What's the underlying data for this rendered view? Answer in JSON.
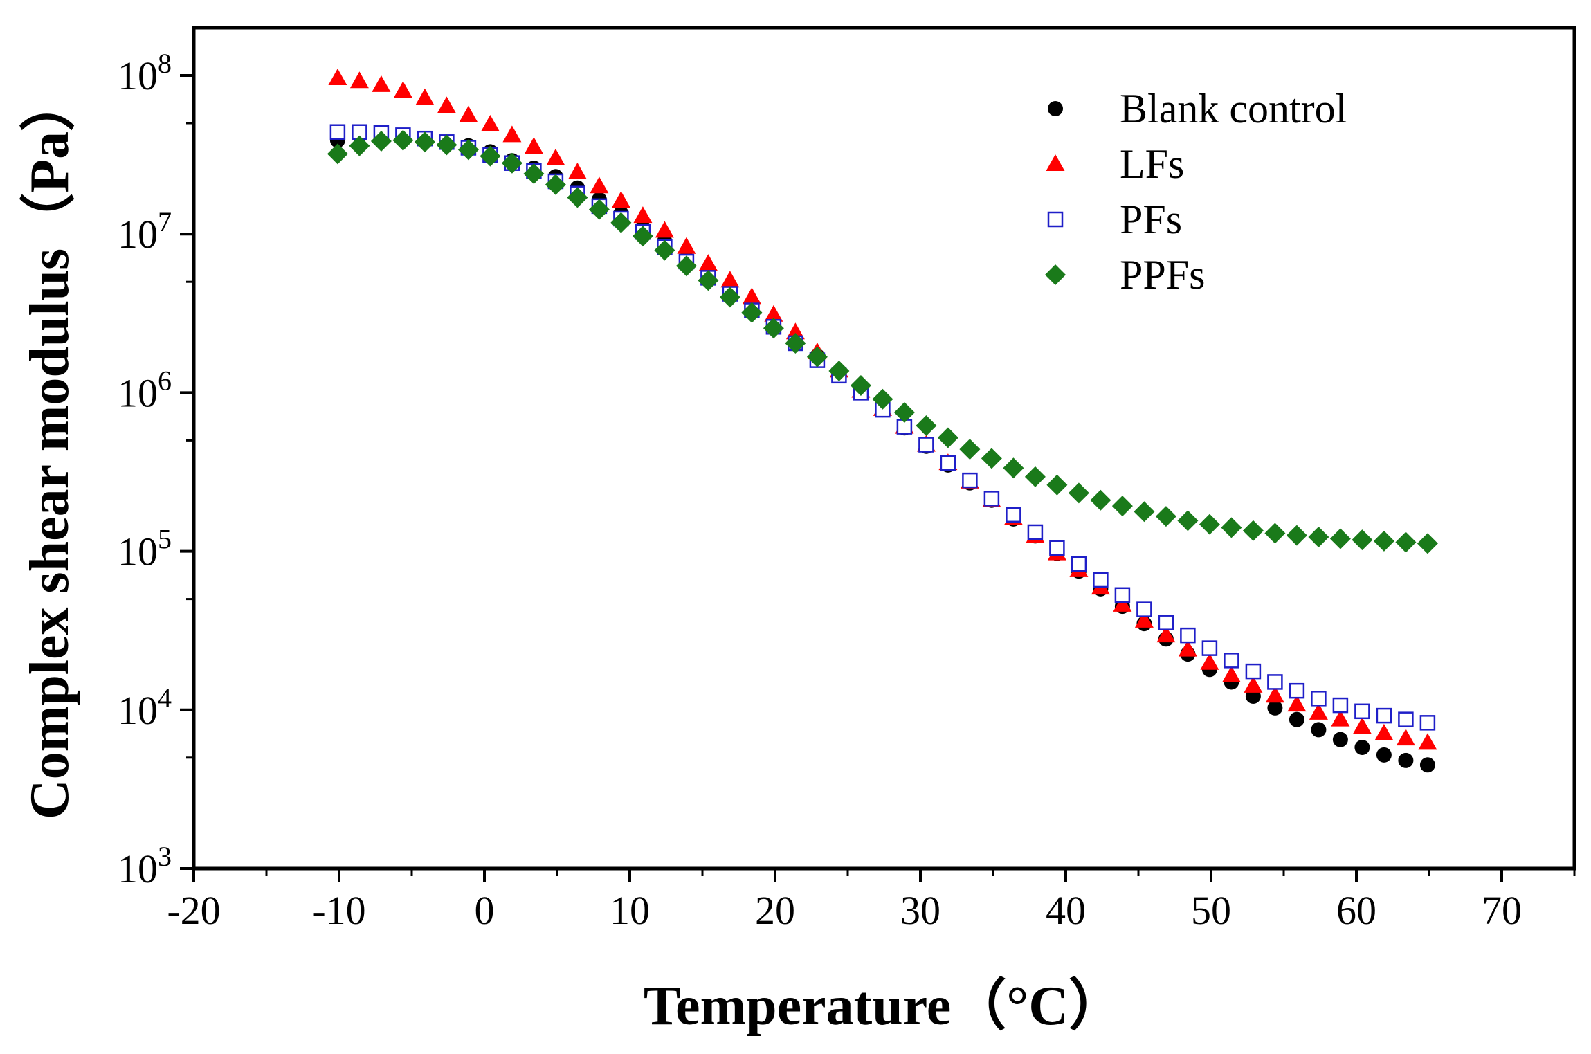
{
  "chart_data": {
    "type": "scatter",
    "title": "",
    "xlabel": "Temperature（°C）",
    "ylabel": "Complex shear modulus（Pa）",
    "xlim": [
      -20,
      75
    ],
    "ylim": [
      1000,
      200000000
    ],
    "yscale": "log",
    "xticks": [
      {
        "value": -20,
        "label": "-20"
      },
      {
        "value": -10,
        "label": "-10"
      },
      {
        "value": 0,
        "label": "0"
      },
      {
        "value": 10,
        "label": "10"
      },
      {
        "value": 20,
        "label": "20"
      },
      {
        "value": 30,
        "label": "30"
      },
      {
        "value": 40,
        "label": "40"
      },
      {
        "value": 50,
        "label": "50"
      },
      {
        "value": 60,
        "label": "60"
      },
      {
        "value": 70,
        "label": "70"
      }
    ],
    "yticks": [
      {
        "value": 1000,
        "base": "10",
        "exp": "3"
      },
      {
        "value": 10000,
        "base": "10",
        "exp": "4"
      },
      {
        "value": 100000,
        "base": "10",
        "exp": "5"
      },
      {
        "value": 1000000,
        "base": "10",
        "exp": "6"
      },
      {
        "value": 10000000,
        "base": "10",
        "exp": "7"
      },
      {
        "value": 100000000,
        "base": "10",
        "exp": "8"
      }
    ],
    "legend_position": "top-right",
    "x": [
      -10.1,
      -8.6,
      -7.1,
      -5.6,
      -4.1,
      -2.6,
      -1.1,
      0.4,
      1.9,
      3.4,
      4.9,
      6.4,
      7.9,
      9.4,
      10.9,
      12.4,
      13.9,
      15.4,
      16.9,
      18.4,
      19.9,
      21.4,
      22.9,
      24.4,
      25.9,
      27.4,
      28.9,
      30.4,
      31.9,
      33.4,
      34.9,
      36.4,
      37.9,
      39.4,
      40.9,
      42.4,
      43.9,
      45.4,
      46.9,
      48.4,
      49.9,
      51.4,
      52.9,
      54.4,
      55.9,
      57.4,
      58.9,
      60.4,
      61.9,
      63.4,
      64.9
    ],
    "series": [
      {
        "name": "Blank control",
        "marker": "circle",
        "color": "#000000",
        "values": [
          39000000,
          42000000,
          42000000,
          41000000,
          40000000,
          38000000,
          36000000,
          33000000,
          29000000,
          26000000,
          23000000,
          19500000,
          16500000,
          13500000,
          11000000,
          9000000,
          7000000,
          5500000,
          4300000,
          3500000,
          2800000,
          2200000,
          1700000,
          1300000,
          1000000,
          780000,
          600000,
          460000,
          350000,
          270000,
          210000,
          160000,
          125000,
          97000,
          75000,
          58000,
          45000,
          35000,
          28000,
          22500,
          18000,
          15000,
          12200,
          10300,
          8700,
          7500,
          6500,
          5800,
          5200,
          4800,
          4500
        ]
      },
      {
        "name": "LFs",
        "marker": "triangle",
        "color": "#ff0000",
        "values": [
          96000000,
          92000000,
          87000000,
          80000000,
          72000000,
          64000000,
          56000000,
          49000000,
          42000000,
          35500000,
          30000000,
          24500000,
          20000000,
          16200000,
          13000000,
          10500000,
          8300000,
          6500000,
          5100000,
          4000000,
          3100000,
          2400000,
          1800000,
          1380000,
          1030000,
          790000,
          610000,
          470000,
          360000,
          275000,
          210000,
          162000,
          125000,
          97000,
          76000,
          59000,
          46000,
          36500,
          29500,
          24000,
          19800,
          16500,
          14200,
          12300,
          10800,
          9600,
          8700,
          7800,
          7100,
          6600,
          6200
        ]
      },
      {
        "name": "PFs",
        "marker": "square-open",
        "color": "#1f1fc8",
        "values": [
          44000000,
          44000000,
          43500000,
          42000000,
          40000000,
          38000000,
          35000000,
          31500000,
          28000000,
          25000000,
          21500000,
          18000000,
          15000000,
          12500000,
          10300000,
          8300000,
          6700000,
          5300000,
          4200000,
          3300000,
          2600000,
          2050000,
          1600000,
          1280000,
          1000000,
          780000,
          610000,
          470000,
          360000,
          280000,
          215000,
          170000,
          132000,
          105000,
          83000,
          66000,
          53000,
          43000,
          35500,
          29500,
          24500,
          20500,
          17500,
          15000,
          13200,
          11800,
          10700,
          9800,
          9200,
          8700,
          8300
        ]
      },
      {
        "name": "PPFs",
        "marker": "diamond",
        "color": "#1a7a1a",
        "values": [
          32000000,
          36000000,
          38500000,
          39000000,
          38000000,
          36500000,
          34000000,
          31000000,
          28000000,
          24000000,
          20500000,
          17000000,
          14300000,
          11800000,
          9700000,
          7900000,
          6300000,
          5100000,
          4000000,
          3200000,
          2550000,
          2050000,
          1680000,
          1370000,
          1110000,
          910000,
          750000,
          620000,
          520000,
          440000,
          385000,
          335000,
          295000,
          262000,
          233000,
          210000,
          193000,
          178000,
          166000,
          156000,
          148000,
          141000,
          135000,
          130000,
          126000,
          123000,
          120000,
          118000,
          116000,
          114000,
          112000
        ]
      }
    ]
  }
}
